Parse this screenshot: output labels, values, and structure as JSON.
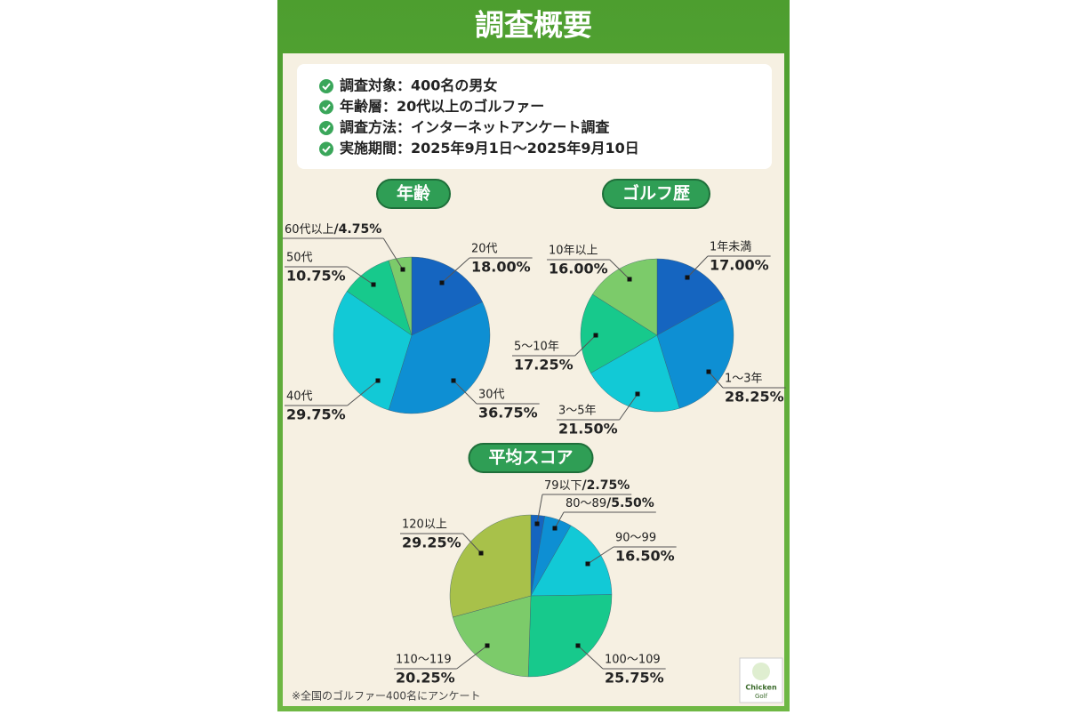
{
  "title": "調査概要",
  "survey_items": [
    "調査対象：400名の男女",
    "年齢層：20代以上のゴルファー",
    "調査方法：インターネットアンケート調査",
    "実施期間：2025年9月1日〜2025年9月10日"
  ],
  "footnote": "※全国のゴルファー400名にアンケート",
  "logo": [
    "Chicken",
    "Golf"
  ],
  "chart_data": [
    {
      "type": "pie",
      "title": "年齢",
      "categories": [
        "20代",
        "30代",
        "40代",
        "50代",
        "60代以上"
      ],
      "values": [
        18,
        36.75,
        29.75,
        10.75,
        4.75
      ],
      "value_labels": [
        "18.00%",
        "36.75%",
        "29.75%",
        "10.75%",
        "/4.75%"
      ],
      "colors": [
        "#1565c0",
        "#0e8fd3",
        "#12c9d6",
        "#17c98c",
        "#7ccb6a"
      ]
    },
    {
      "type": "pie",
      "title": "ゴルフ歴",
      "categories": [
        "1年未満",
        "1〜3年",
        "3〜5年",
        "5〜10年",
        "10年以上"
      ],
      "values": [
        17,
        28.25,
        21.5,
        17.25,
        16
      ],
      "value_labels": [
        "17.00%",
        "28.25%",
        "21.50%",
        "17.25%",
        "16.00%"
      ],
      "colors": [
        "#1565c0",
        "#0e8fd3",
        "#12c9d6",
        "#17c98c",
        "#7ccb6a"
      ]
    },
    {
      "type": "pie",
      "title": "平均スコア",
      "categories": [
        "79以下",
        "80〜89",
        "90〜99",
        "100〜109",
        "110〜119",
        "120以上"
      ],
      "values": [
        2.75,
        5.5,
        16.5,
        25.75,
        20.25,
        29.25
      ],
      "value_labels": [
        "/2.75%",
        "/5.50%",
        "16.50%",
        "25.75%",
        "20.25%",
        "29.25%"
      ],
      "colors": [
        "#1565c0",
        "#0e8fd3",
        "#12c9d6",
        "#17c98c",
        "#7ccb6a",
        "#a8c14a"
      ]
    }
  ]
}
